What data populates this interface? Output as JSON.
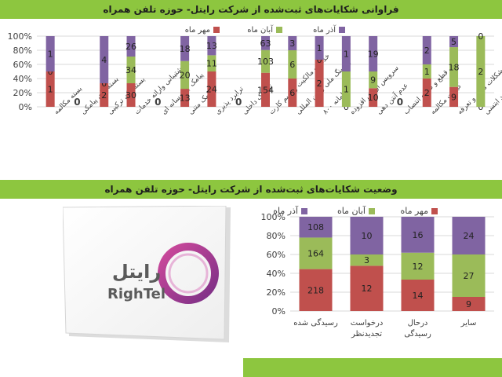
{
  "banners": {
    "top": "فراوانی شکایات‌های ثبت‌شده از شرکت  رایتل- حوزه تلفن همراه",
    "middle": "وضعیت شکایات‌های ثبت‌شده از شرکت  رایتل- حوزه تلفن همراه",
    "bottom": ""
  },
  "logo": {
    "name": "رایتل",
    "latin": "RighTel"
  },
  "colors": {
    "mehr": "#c0504d",
    "aban": "#9bbb59",
    "azar": "#8064a2",
    "banner": "#8dc63f",
    "grid": "#d9d9d9"
  },
  "chart_data": [
    {
      "type": "bar",
      "stacked": "percent",
      "legend_position": "top-right",
      "ylim": [
        0,
        100
      ],
      "ytick_labels": [
        "0%",
        "20%",
        "40%",
        "60%",
        "80%",
        "100%"
      ],
      "categories": [
        "بسته مکالمه",
        "بسته های پیامکی",
        "بسته های ترکیبی",
        "پشتیبانی وارائه خدمات",
        "پیامک چندرسانه ای",
        "پیامک متنی",
        "ترابرد پذیری",
        "ترافیک داخلی",
        "خدمات مالکیت و سیم کارت",
        "رومینگ ملی و بین المللی",
        "سامانه ۸۰۰",
        "سرویس ارزش افزوده",
        "عدم آنتن دهی",
        "قطع و صوتو انتصاب",
        "کیفیت مکالمه",
        "مشکلات مالی و تعرفه",
        "موارد ابتسی"
      ],
      "series": [
        {
          "name": "مهر ماه",
          "values": [
            1,
            0,
            2,
            30,
            0,
            13,
            24,
            0,
            154,
            6,
            2,
            0,
            10,
            0,
            2,
            9,
            0
          ]
        },
        {
          "name": "آبان ماه",
          "values": [
            0,
            0,
            0,
            34,
            0,
            20,
            11,
            0,
            103,
            6,
            0,
            1,
            9,
            0,
            1,
            18,
            2
          ]
        },
        {
          "name": "آذر ماه",
          "values": [
            1,
            0,
            4,
            26,
            0,
            18,
            13,
            0,
            63,
            3,
            1,
            1,
            19,
            0,
            2,
            5,
            0
          ]
        }
      ]
    },
    {
      "type": "bar",
      "stacked": "percent",
      "legend_position": "top",
      "ylim": [
        0,
        100
      ],
      "ytick_labels": [
        "0%",
        "20%",
        "40%",
        "60%",
        "80%",
        "100%"
      ],
      "categories": [
        "رسیدگی شده",
        "درخواست تجدیدنظر",
        "درحال رسیدگی",
        "سایر"
      ],
      "series": [
        {
          "name": "مهر ماه",
          "values": [
            218,
            12,
            14,
            9
          ]
        },
        {
          "name": "آبان ماه",
          "values": [
            164,
            3,
            12,
            27
          ]
        },
        {
          "name": "آذر ماه",
          "values": [
            108,
            10,
            16,
            24
          ]
        }
      ]
    }
  ]
}
